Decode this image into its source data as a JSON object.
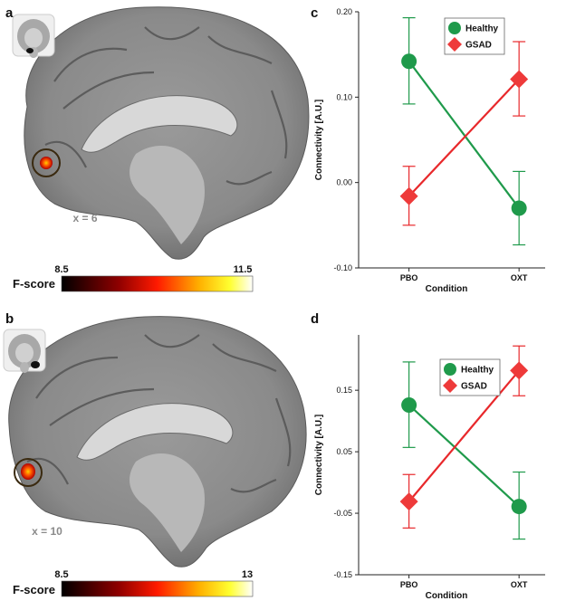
{
  "panels": {
    "a": {
      "letter": "a",
      "slice_label": "x = 6",
      "colorbar": {
        "title": "F-score",
        "min_label": "8.5",
        "max_label": "11.5"
      }
    },
    "b": {
      "letter": "b",
      "slice_label": "x = 10",
      "colorbar": {
        "title": "F-score",
        "min_label": "8.5",
        "max_label": "13"
      }
    },
    "c": {
      "letter": "c"
    },
    "d": {
      "letter": "d"
    }
  },
  "colors": {
    "healthy": "#1f9a4b",
    "gsad": "#e8282b",
    "gsad_marker": "#ee3a3a"
  },
  "icons": [
    "coronal-brain-thumbnail-icon",
    "sagittal-brain-slice-icon"
  ],
  "chart_data": [
    {
      "panel": "c",
      "type": "line",
      "categories": [
        "PBO",
        "OXT"
      ],
      "xlabel": "Condition",
      "ylabel": "Connectivity [A.U.]",
      "ylim": [
        -0.1,
        0.2
      ],
      "yticks": [
        -0.1,
        0.0,
        0.1,
        0.2
      ],
      "ytick_labels": [
        "-0.10",
        "0.00",
        "0.10",
        "0.20"
      ],
      "legend_position": "top-center",
      "series": [
        {
          "name": "Healthy",
          "marker": "circle",
          "values": [
            0.142,
            -0.03
          ],
          "err_low": [
            0.092,
            -0.073
          ],
          "err_high": [
            0.193,
            0.013
          ]
        },
        {
          "name": "GSAD",
          "marker": "diamond",
          "values": [
            -0.016,
            0.121
          ],
          "err_low": [
            -0.05,
            0.078
          ],
          "err_high": [
            0.019,
            0.165
          ]
        }
      ]
    },
    {
      "panel": "d",
      "type": "line",
      "categories": [
        "PBO",
        "OXT"
      ],
      "xlabel": "Condition",
      "ylabel": "Connectivity [A.U.]",
      "ylim": [
        -0.15,
        0.24
      ],
      "yticks": [
        -0.15,
        -0.05,
        0.05,
        0.15
      ],
      "ytick_labels": [
        "-0.15",
        "-0.05",
        "0.05",
        "0.15"
      ],
      "legend_position": "top-center",
      "series": [
        {
          "name": "Healthy",
          "marker": "circle",
          "values": [
            0.126,
            -0.039
          ],
          "err_low": [
            0.057,
            -0.092
          ],
          "err_high": [
            0.196,
            0.017
          ]
        },
        {
          "name": "GSAD",
          "marker": "diamond",
          "values": [
            -0.031,
            0.182
          ],
          "err_low": [
            -0.074,
            0.141
          ],
          "err_high": [
            0.013,
            0.222
          ]
        }
      ]
    }
  ]
}
